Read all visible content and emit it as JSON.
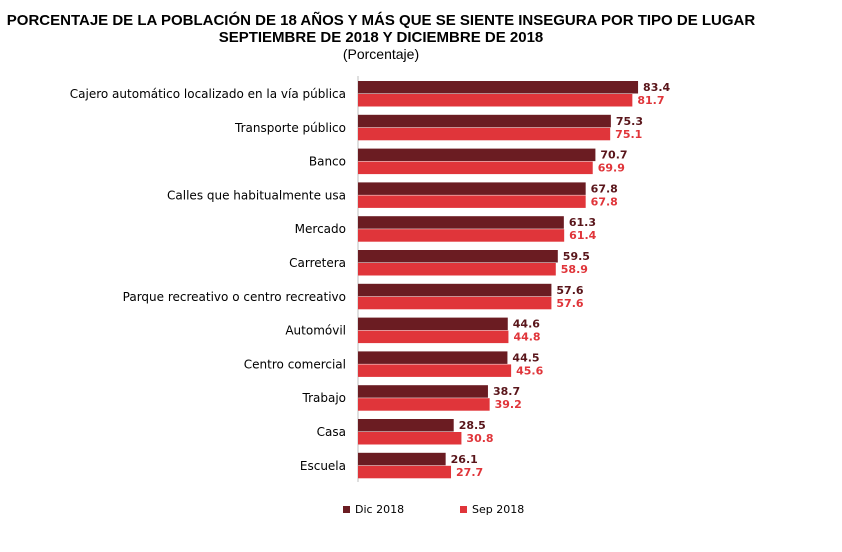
{
  "title_line1": "PORCENTAJE DE LA POBLACIÓN DE 18 AÑOS Y MÁS QUE SE SIENTE INSEGURA POR TIPO DE LUGAR",
  "title_line2": "SEPTIEMBRE DE 2018 Y DICIEMBRE DE 2018",
  "subtitle": "(Porcentaje)",
  "chart_data": {
    "type": "bar",
    "orientation": "horizontal",
    "title": "PORCENTAJE DE LA POBLACIÓN DE 18 AÑOS Y MÁS QUE SE SIENTE INSEGURA POR TIPO DE LUGAR SEPTIEMBRE DE 2018 Y DICIEMBRE DE 2018",
    "subtitle": "(Porcentaje)",
    "categories": [
      "Cajero automático localizado en la vía pública",
      "Transporte público",
      "Banco",
      "Calles que habitualmente usa",
      "Mercado",
      "Carretera",
      "Parque recreativo o centro recreativo",
      "Automóvil",
      "Centro comercial",
      "Trabajo",
      "Casa",
      "Escuela"
    ],
    "series": [
      {
        "name": "Dic  2018",
        "color": "#6b1c22",
        "values": [
          83.4,
          75.3,
          70.7,
          67.8,
          61.3,
          59.5,
          57.6,
          44.6,
          44.5,
          38.7,
          28.5,
          26.1
        ]
      },
      {
        "name": "Sep  2018",
        "color": "#e0353a",
        "values": [
          81.7,
          75.1,
          69.9,
          67.8,
          61.4,
          58.9,
          57.6,
          44.8,
          45.6,
          39.2,
          30.8,
          27.7
        ]
      }
    ],
    "xlim": [
      0,
      100
    ],
    "grid": false,
    "legend_position": "bottom"
  }
}
